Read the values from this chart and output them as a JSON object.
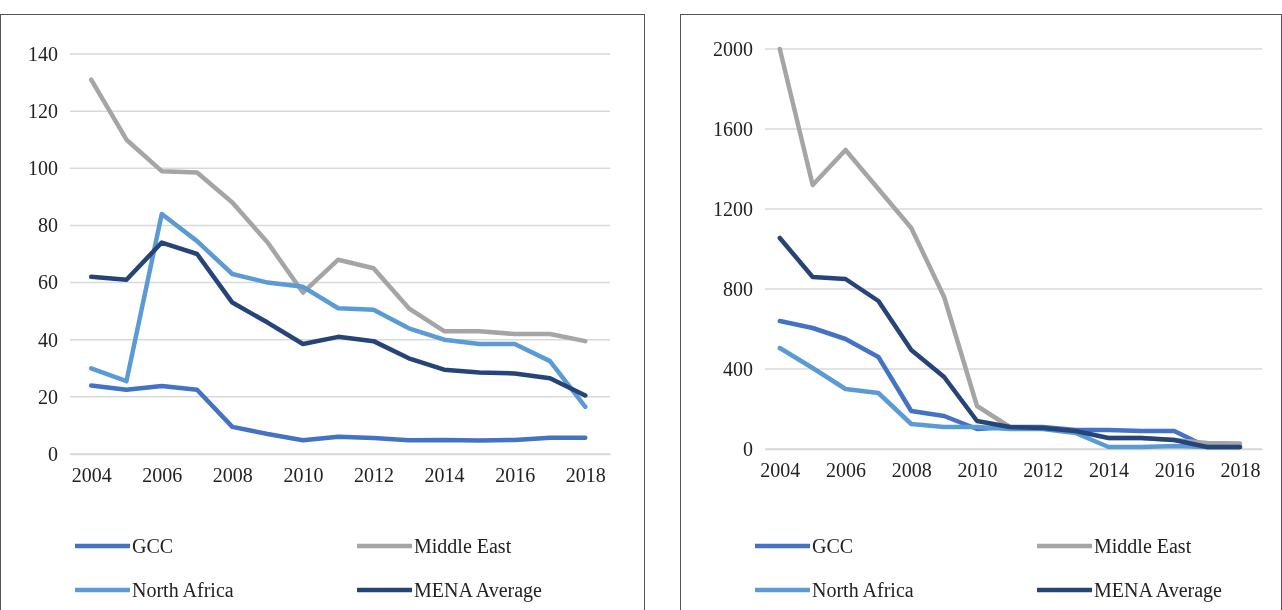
{
  "chart_data": [
    {
      "type": "line",
      "x": [
        2004,
        2005,
        2006,
        2007,
        2008,
        2009,
        2010,
        2011,
        2012,
        2013,
        2014,
        2015,
        2016,
        2017,
        2018
      ],
      "xlim": [
        2003.4,
        2018.7
      ],
      "xticks": [
        2004,
        2006,
        2008,
        2010,
        2012,
        2014,
        2016,
        2018
      ],
      "ylim": [
        0,
        140
      ],
      "yticks": [
        0,
        20,
        40,
        60,
        80,
        100,
        120,
        140
      ],
      "grid": "y",
      "legend": "bottom",
      "marker": "none",
      "line_style": "solid",
      "series": [
        {
          "name": "GCC",
          "color": "#4472c4",
          "values": [
            24,
            22.5,
            23.8,
            22.5,
            9.5,
            7,
            4.8,
            6,
            5.6,
            4.8,
            4.9,
            4.7,
            4.9,
            5.7,
            5.7
          ]
        },
        {
          "name": "Middle East",
          "color": "#a5a5a5",
          "values": [
            131,
            110,
            99,
            98.5,
            88,
            74,
            56.5,
            68,
            65,
            51,
            43,
            43,
            42,
            42,
            39.5
          ]
        },
        {
          "name": "North Africa",
          "color": "#5b9bd5",
          "values": [
            30,
            25.5,
            84,
            74.5,
            63,
            60,
            58.5,
            51,
            50.5,
            44,
            40,
            38.5,
            38.5,
            32.5,
            16.5
          ]
        },
        {
          "name": "MENA Average",
          "color": "#264478",
          "values": [
            62,
            61,
            74,
            70,
            53,
            46,
            38.5,
            41,
            39.5,
            33.5,
            29.5,
            28.5,
            28.2,
            26.5,
            20.5
          ]
        }
      ]
    },
    {
      "type": "line",
      "x": [
        2004,
        2005,
        2006,
        2007,
        2008,
        2009,
        2010,
        2011,
        2012,
        2013,
        2014,
        2015,
        2016,
        2017,
        2018
      ],
      "xlim": [
        2003.55,
        2018.67
      ],
      "xticks": [
        2004,
        2006,
        2008,
        2010,
        2012,
        2014,
        2016,
        2018
      ],
      "ylim": [
        0,
        2000
      ],
      "yticks": [
        0,
        400,
        800,
        1200,
        1600,
        2000
      ],
      "grid": "y",
      "legend": "bottom",
      "marker": "none",
      "line_style": "solid",
      "series": [
        {
          "name": "GCC",
          "color": "#4472c4",
          "values": [
            640,
            605,
            550,
            460,
            190,
            165,
            100,
            110,
            110,
            95,
            95,
            90,
            90,
            10,
            10
          ]
        },
        {
          "name": "Middle East",
          "color": "#a5a5a5",
          "values": [
            2000,
            1320,
            1495,
            1300,
            1105,
            760,
            215,
            110,
            null,
            null,
            55,
            55,
            45,
            30,
            28
          ]
        },
        {
          "name": "North Africa",
          "color": "#5b9bd5",
          "values": [
            505,
            405,
            300,
            280,
            125,
            110,
            110,
            100,
            100,
            80,
            10,
            10,
            15,
            10,
            10
          ]
        },
        {
          "name": "MENA Average",
          "color": "#264478",
          "values": [
            1055,
            860,
            850,
            740,
            495,
            360,
            140,
            110,
            105,
            90,
            55,
            55,
            45,
            10,
            10
          ]
        }
      ]
    }
  ]
}
